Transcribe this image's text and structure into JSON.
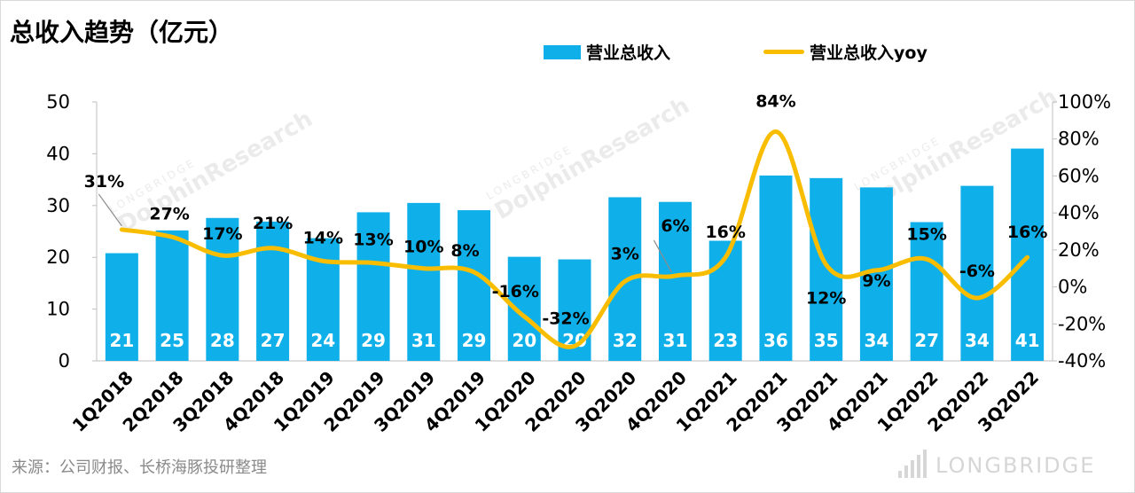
{
  "title": "总收入趋势（亿元）",
  "source_note": "来源：公司财报、长桥海豚投研整理",
  "brand_logo_text": "LONGBRIDGE",
  "watermark": {
    "small": "LONGBRIDGE",
    "big": "DolphinResearch"
  },
  "colors": {
    "bar": "#0fb0e9",
    "line": "#f9bd00",
    "bar_label": "#ffffff",
    "text": "#000000",
    "grid_axis": "#bfbfbf"
  },
  "chart_data": {
    "type": "bar",
    "categories": [
      "1Q2018",
      "2Q2018",
      "3Q2018",
      "4Q2018",
      "1Q2019",
      "2Q2019",
      "3Q2019",
      "4Q2019",
      "1Q2020",
      "2Q2020",
      "3Q2020",
      "4Q2020",
      "1Q2021",
      "2Q2021",
      "3Q2021",
      "4Q2021",
      "1Q2022",
      "2Q2022",
      "3Q2022"
    ],
    "series": [
      {
        "name": "营业总收入",
        "type": "bar",
        "axis": "left",
        "values": [
          20.8,
          25.2,
          27.6,
          26.9,
          23.7,
          28.7,
          30.5,
          29.1,
          20.1,
          19.6,
          31.6,
          30.7,
          23.2,
          35.8,
          35.3,
          33.5,
          26.8,
          33.8,
          41.0
        ],
        "labels": [
          "21",
          "25",
          "28",
          "27",
          "24",
          "29",
          "31",
          "29",
          "20",
          "20",
          "32",
          "31",
          "23",
          "36",
          "35",
          "34",
          "27",
          "34",
          "41"
        ]
      },
      {
        "name": "营业总收入yoy",
        "type": "line",
        "axis": "right",
        "values": [
          31,
          27,
          17,
          21,
          14,
          13,
          10,
          8,
          -16,
          -32,
          3,
          6,
          16,
          84,
          12,
          9,
          15,
          -6,
          16
        ],
        "labels": [
          "31%",
          "27%",
          "17%",
          "21%",
          "14%",
          "13%",
          "10%",
          "8%",
          "-16%",
          "-32%",
          "3%",
          "6%",
          "16%",
          "84%",
          "12%",
          "9%",
          "15%",
          "-6%",
          "16%"
        ]
      }
    ],
    "y_left": {
      "min": 0,
      "max": 50,
      "ticks": [
        0,
        10,
        20,
        30,
        40,
        50
      ],
      "tick_labels": [
        "0",
        "10",
        "20",
        "30",
        "40",
        "50"
      ]
    },
    "y_right": {
      "min": -40,
      "max": 100,
      "ticks": [
        -40,
        -20,
        0,
        20,
        40,
        60,
        80,
        100
      ],
      "tick_labels": [
        "-40%",
        "-20%",
        "0%",
        "20%",
        "40%",
        "60%",
        "80%",
        "100%"
      ]
    },
    "grid": false,
    "legend_position": "top-right"
  }
}
